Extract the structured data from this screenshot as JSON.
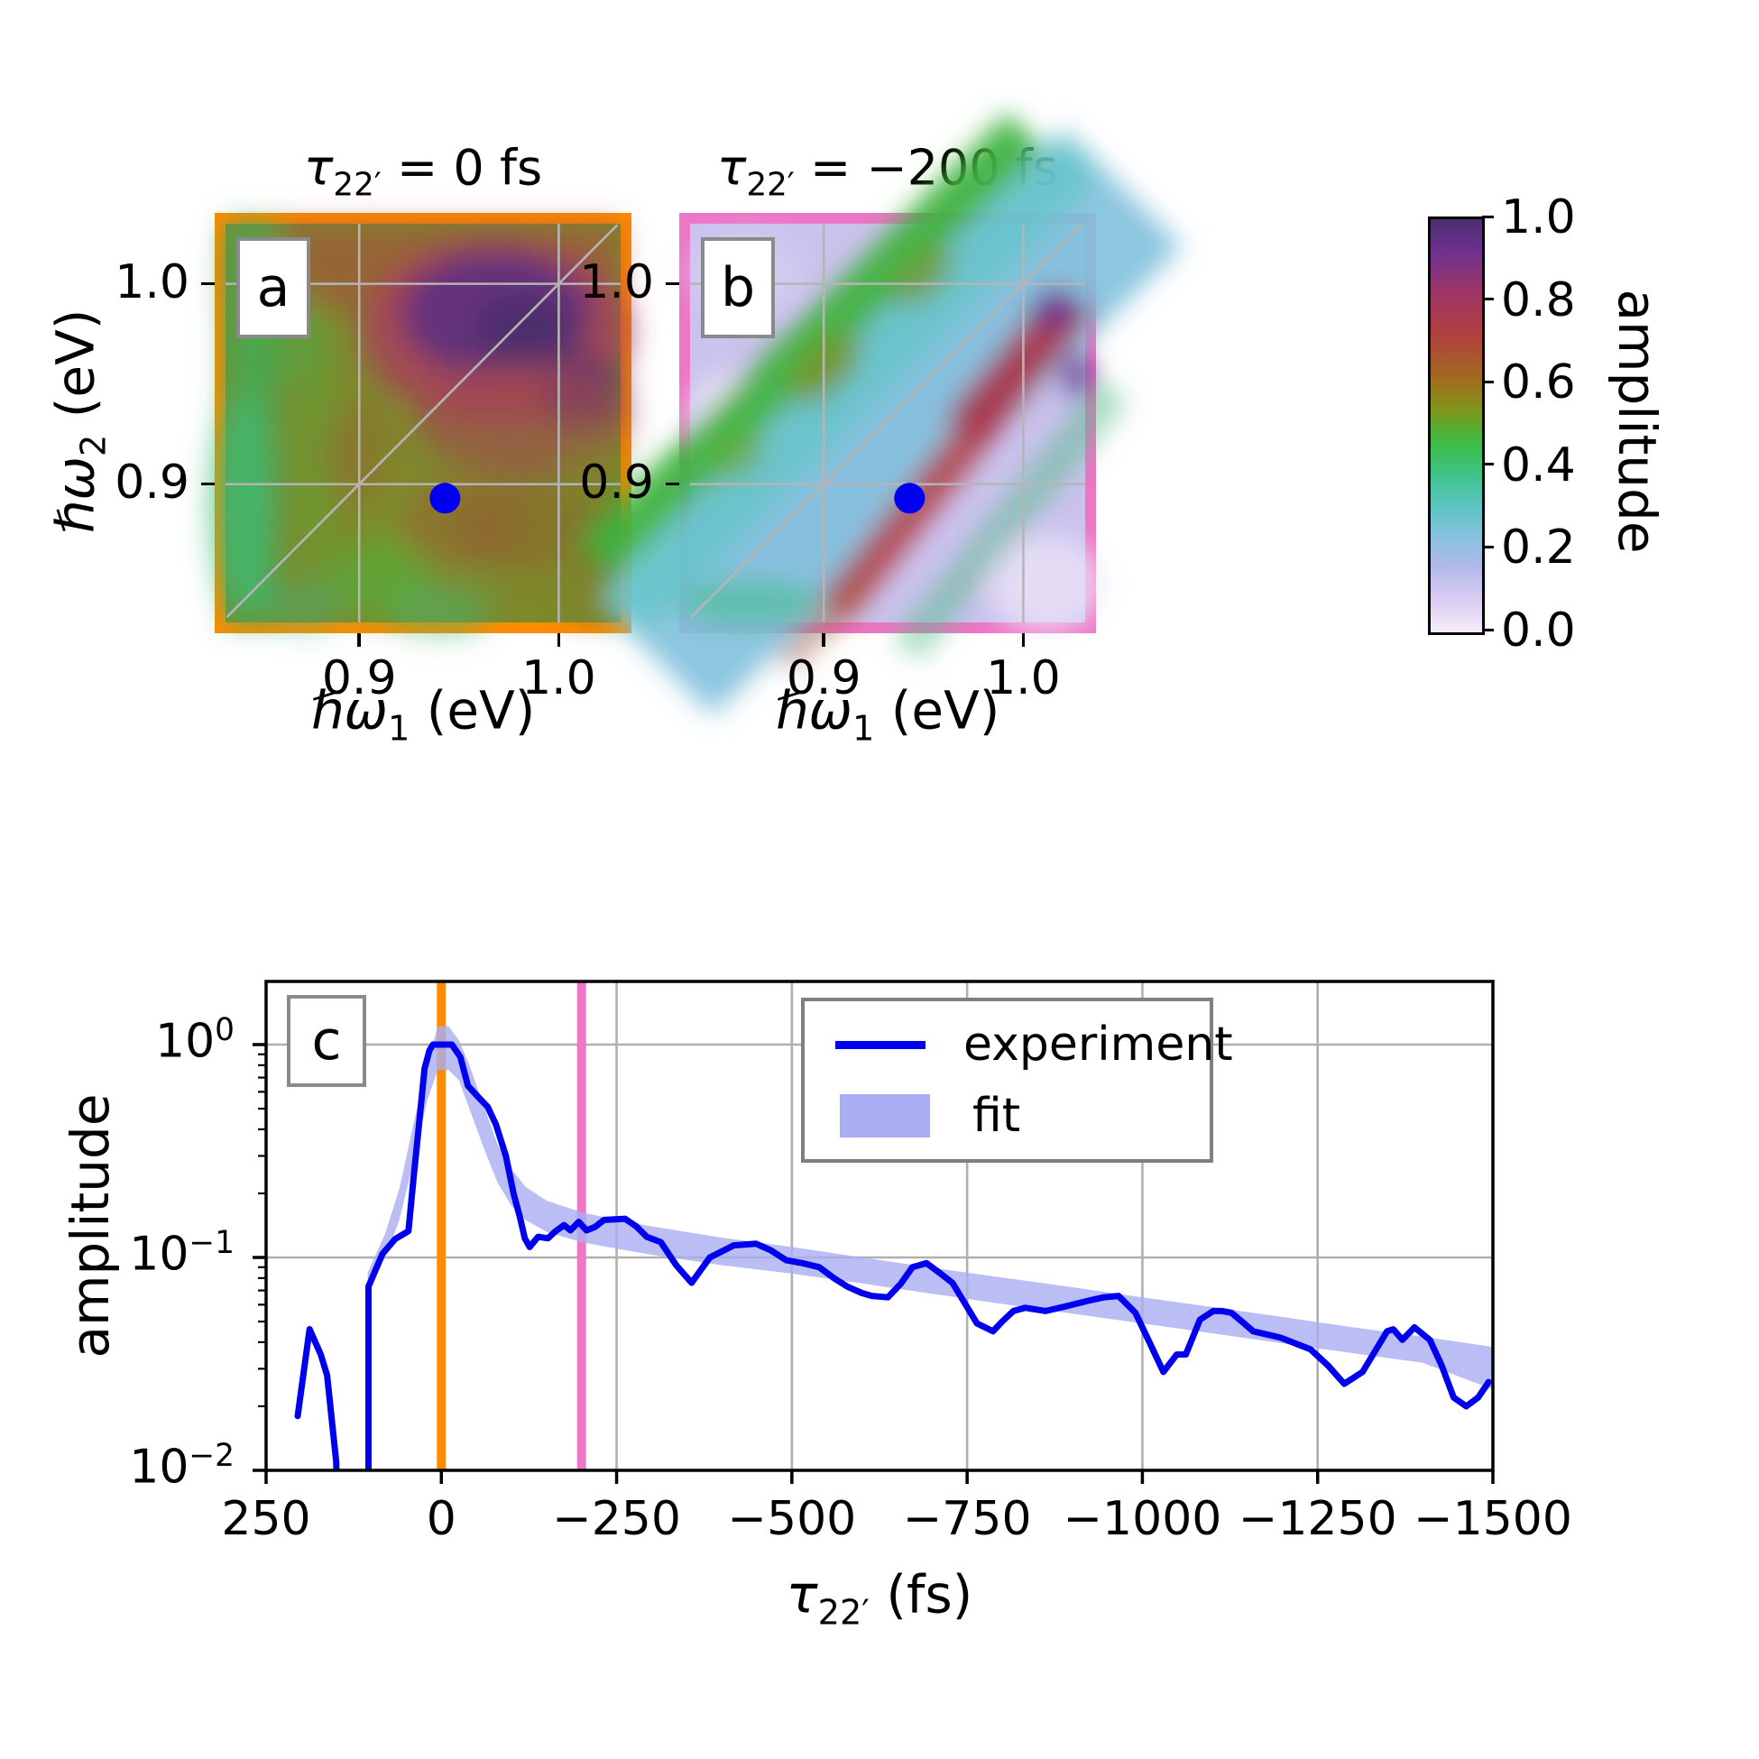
{
  "panel_a": {
    "letter": "a",
    "title": {
      "tau": "τ",
      "sub": "22′",
      "rest": " = 0 fs"
    },
    "xlabel": {
      "base": "ℏω",
      "sub": "1",
      "rest": " (eV)"
    },
    "x_tick_labels": [
      "0.9",
      "1.0"
    ],
    "y_tick_labels": [
      "1.0",
      "0.9"
    ],
    "border_color": "#ff8c00",
    "marker_color": "#0000ee"
  },
  "panel_b": {
    "letter": "b",
    "title": {
      "tau": "τ",
      "sub": "22′",
      "rest": " = −200 fs"
    },
    "xlabel": {
      "base": "ℏω",
      "sub": "1",
      "rest": " (eV)"
    },
    "x_tick_labels": [
      "0.9",
      "1.0"
    ],
    "y_tick_labels": [
      "1.0",
      "0.9"
    ],
    "border_color": "#ec77c7",
    "marker_color": "#0000ee"
  },
  "ylabel_ab": {
    "base": "ℏω",
    "sub": "2",
    "rest": " (eV)"
  },
  "colorbar": {
    "label": "amplitude",
    "tick_labels": [
      "1.0",
      "0.8",
      "0.6",
      "0.4",
      "0.2",
      "0.0"
    ],
    "tick_values": [
      1.0,
      0.8,
      0.6,
      0.4,
      0.2,
      0.0
    ],
    "gradient_stops": [
      [
        "0%",
        "#f7eef9"
      ],
      [
        "8%",
        "#d9ccf2"
      ],
      [
        "16%",
        "#b1b9ec"
      ],
      [
        "22%",
        "#8fc0e2"
      ],
      [
        "30%",
        "#5ec4c6"
      ],
      [
        "38%",
        "#3ec48b"
      ],
      [
        "46%",
        "#3dbb44"
      ],
      [
        "54%",
        "#82951a"
      ],
      [
        "62%",
        "#a4681f"
      ],
      [
        "72%",
        "#b04140"
      ],
      [
        "82%",
        "#a03563"
      ],
      [
        "92%",
        "#6e3190"
      ],
      [
        "100%",
        "#4b2e6e"
      ]
    ]
  },
  "panel_c": {
    "letter": "c",
    "ylabel": "amplitude",
    "xlabel": {
      "tau": "τ",
      "sub": "22′",
      "rest": " (fs)"
    },
    "x_tick_labels": [
      "250",
      "0",
      "−250",
      "−500",
      "−750",
      "−1000",
      "−1250",
      "−1500"
    ],
    "y_tick_labels": [
      {
        "base": "10",
        "exp": "0"
      },
      {
        "base": "10",
        "exp": "−1"
      },
      {
        "base": "10",
        "exp": "−2"
      }
    ],
    "legend": {
      "experiment": "experiment",
      "fit": "fit"
    },
    "grid_color": "#b0b0b0",
    "experiment_color": "#0000ee",
    "fit_band_color": "#a9aef2",
    "vline_zero_color": "#ff8c00",
    "vline_m200_color": "#ec77c7"
  },
  "chart_data": [
    {
      "id": "a",
      "type": "heatmap",
      "title": "τ22′ = 0 fs",
      "xlabel": "ℏω1 (eV)",
      "ylabel": "ℏω2 (eV)",
      "x_range": [
        0.833,
        1.031
      ],
      "y_range": [
        0.831,
        1.03
      ],
      "x_ticks": [
        0.9,
        1.0
      ],
      "y_ticks": [
        1.0,
        0.9
      ],
      "amplitude_range": [
        0.0,
        1.0
      ],
      "diagonal_line": true,
      "marker_point": {
        "x": 0.943,
        "y": 0.893
      },
      "features": "broad high amplitude 0.5-1.0 everywhere; dark purple maximum ~0.95 centered near (0.98,0.97); crimson ~0.8 surrounding it; olive/brown ~0.6 midfield; green ~0.45 vertical bands at left edge and mottled green lower-left"
    },
    {
      "id": "b",
      "type": "heatmap",
      "title": "τ22′ = −200 fs",
      "xlabel": "ℏω1 (eV)",
      "ylabel": "ℏω2 (eV)",
      "x_range": [
        0.833,
        1.031
      ],
      "y_range": [
        0.831,
        1.03
      ],
      "x_ticks": [
        0.9,
        1.0
      ],
      "y_ticks": [
        1.0,
        0.9
      ],
      "amplitude_range": [
        0.0,
        1.0
      ],
      "diagonal_line": true,
      "marker_point": {
        "x": 0.943,
        "y": 0.893
      },
      "features": "pale lavender background ~0.1; wide cyan band ~0.25 along the diagonal; green stripe ~0.45 parallel above the diagonal; narrow red ridge ~0.8 just below the diagonal from (0.90,0.86) to (1.03,1.00) with dark purple spots ~0.9 near the top right; faint teal-green stripe below the ridge"
    },
    {
      "id": "c",
      "type": "line",
      "xlabel": "τ22′ (fs)",
      "ylabel": "amplitude",
      "x_range": [
        250,
        -1500
      ],
      "y_scale": "log",
      "y_range": [
        0.01,
        1.98
      ],
      "x_tick_values": [
        250,
        0,
        -250,
        -500,
        -750,
        -1000,
        -1250,
        -1500
      ],
      "y_tick_values": [
        1,
        0.1,
        0.01
      ],
      "grid": true,
      "legend_position": "upper right",
      "vlines": [
        {
          "x": 0,
          "color": "#ff8c00"
        },
        {
          "x": -200,
          "color": "#ec77c7"
        }
      ],
      "series": [
        {
          "name": "experiment",
          "type": "line",
          "color": "#0000ee",
          "segments": [
            [
              [
                205,
                0.018
              ],
              [
                188,
                0.046
              ],
              [
                172,
                0.035
              ],
              [
                163,
                0.028
              ],
              [
                150,
                0.011
              ],
              [
                147,
                0.004
              ]
            ],
            [
              [
                104,
                0.004
              ],
              [
                104,
                0.073
              ],
              [
                84,
                0.104
              ],
              [
                66,
                0.122
              ],
              [
                47,
                0.133
              ],
              [
                40,
                0.23
              ],
              [
                31,
                0.45
              ],
              [
                24,
                0.77
              ],
              [
                17,
                0.94
              ],
              [
                12,
                1.0
              ],
              [
                -15,
                1.0
              ],
              [
                -27,
                0.875
              ],
              [
                -38,
                0.64
              ],
              [
                -52,
                0.57
              ],
              [
                -66,
                0.51
              ],
              [
                -78,
                0.42
              ],
              [
                -92,
                0.3
              ],
              [
                -103,
                0.2
              ],
              [
                -112,
                0.155
              ],
              [
                -119,
                0.123
              ],
              [
                -126,
                0.112
              ],
              [
                -138,
                0.125
              ],
              [
                -152,
                0.123
              ],
              [
                -163,
                0.133
              ],
              [
                -175,
                0.142
              ],
              [
                -184,
                0.134
              ],
              [
                -196,
                0.147
              ],
              [
                -207,
                0.134
              ],
              [
                -219,
                0.139
              ],
              [
                -232,
                0.15
              ],
              [
                -248,
                0.151
              ],
              [
                -262,
                0.152
              ],
              [
                -278,
                0.14
              ],
              [
                -293,
                0.125
              ],
              [
                -313,
                0.118
              ],
              [
                -335,
                0.092
              ],
              [
                -357,
                0.076
              ],
              [
                -383,
                0.1
              ],
              [
                -417,
                0.114
              ],
              [
                -449,
                0.116
              ],
              [
                -470,
                0.108
              ],
              [
                -492,
                0.097
              ],
              [
                -515,
                0.094
              ],
              [
                -539,
                0.09
              ],
              [
                -560,
                0.08
              ],
              [
                -579,
                0.073
              ],
              [
                -600,
                0.068
              ],
              [
                -614,
                0.066
              ],
              [
                -637,
                0.065
              ],
              [
                -655,
                0.075
              ],
              [
                -672,
                0.09
              ],
              [
                -692,
                0.094
              ],
              [
                -710,
                0.085
              ],
              [
                -729,
                0.076
              ],
              [
                -748,
                0.06
              ],
              [
                -764,
                0.049
              ],
              [
                -787,
                0.045
              ],
              [
                -800,
                0.05
              ],
              [
                -816,
                0.056
              ],
              [
                -833,
                0.058
              ],
              [
                -862,
                0.056
              ],
              [
                -891,
                0.059
              ],
              [
                -926,
                0.063
              ],
              [
                -945,
                0.065
              ],
              [
                -966,
                0.066
              ],
              [
                -990,
                0.055
              ],
              [
                -1010,
                0.04
              ],
              [
                -1030,
                0.029
              ],
              [
                -1049,
                0.035
              ],
              [
                -1062,
                0.035
              ],
              [
                -1082,
                0.051
              ],
              [
                -1101,
                0.056
              ],
              [
                -1114,
                0.056
              ],
              [
                -1127,
                0.055
              ],
              [
                -1145,
                0.049
              ],
              [
                -1158,
                0.045
              ],
              [
                -1197,
                0.042
              ],
              [
                -1240,
                0.037
              ],
              [
                -1265,
                0.031
              ],
              [
                -1288,
                0.0255
              ],
              [
                -1314,
                0.029
              ],
              [
                -1349,
                0.045
              ],
              [
                -1358,
                0.046
              ],
              [
                -1371,
                0.041
              ],
              [
                -1388,
                0.047
              ],
              [
                -1410,
                0.041
              ],
              [
                -1427,
                0.031
              ],
              [
                -1444,
                0.022
              ],
              [
                -1462,
                0.02
              ],
              [
                -1479,
                0.022
              ],
              [
                -1494,
                0.026
              ]
            ]
          ]
        },
        {
          "name": "fit",
          "type": "band",
          "color": "#a9aef2",
          "x": [
            105,
            80,
            60,
            40,
            20,
            5,
            -10,
            -25,
            -40,
            -60,
            -80,
            -100,
            -120,
            -150,
            -200,
            -250,
            -300,
            -400,
            -500,
            -600,
            -700,
            -800,
            -900,
            -1000,
            -1100,
            -1200,
            -1300,
            -1400,
            -1500
          ],
          "upper": [
            0.085,
            0.13,
            0.21,
            0.42,
            0.82,
            1.22,
            1.22,
            1.05,
            0.8,
            0.52,
            0.34,
            0.26,
            0.215,
            0.185,
            0.163,
            0.15,
            0.14,
            0.124,
            0.112,
            0.1,
            0.0895,
            0.0805,
            0.0725,
            0.065,
            0.0585,
            0.0525,
            0.047,
            0.0425,
            0.038
          ],
          "lower": [
            0.072,
            0.1,
            0.15,
            0.28,
            0.55,
            0.76,
            0.76,
            0.68,
            0.5,
            0.33,
            0.225,
            0.175,
            0.15,
            0.132,
            0.118,
            0.11,
            0.103,
            0.092,
            0.084,
            0.0755,
            0.0675,
            0.0605,
            0.0545,
            0.049,
            0.044,
            0.0395,
            0.0355,
            0.032,
            0.024
          ]
        }
      ]
    }
  ]
}
